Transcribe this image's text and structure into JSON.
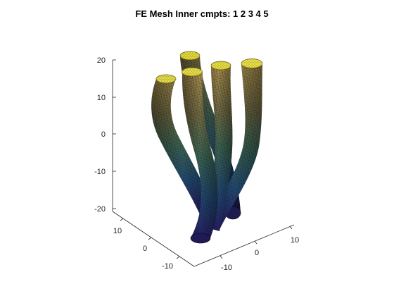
{
  "figure": {
    "title": "FE Mesh Inner cmpts: 1  2  3  4  5",
    "colors": {
      "background": "#ffffff",
      "axis": "#262626",
      "mesh_edge": "#0b0b12",
      "colormap_low": "#3e26a8",
      "colormap_mid": "#35b778",
      "colormap_high": "#f9fb0e"
    }
  },
  "axes": {
    "z_ticks": [
      "20",
      "10",
      "0",
      "-10",
      "-20"
    ],
    "y_ticks": [
      "10",
      "0",
      "-10"
    ],
    "x_ticks": [
      "-10",
      "0",
      "10"
    ]
  },
  "components": [
    "1",
    "2",
    "3",
    "4",
    "5"
  ]
}
